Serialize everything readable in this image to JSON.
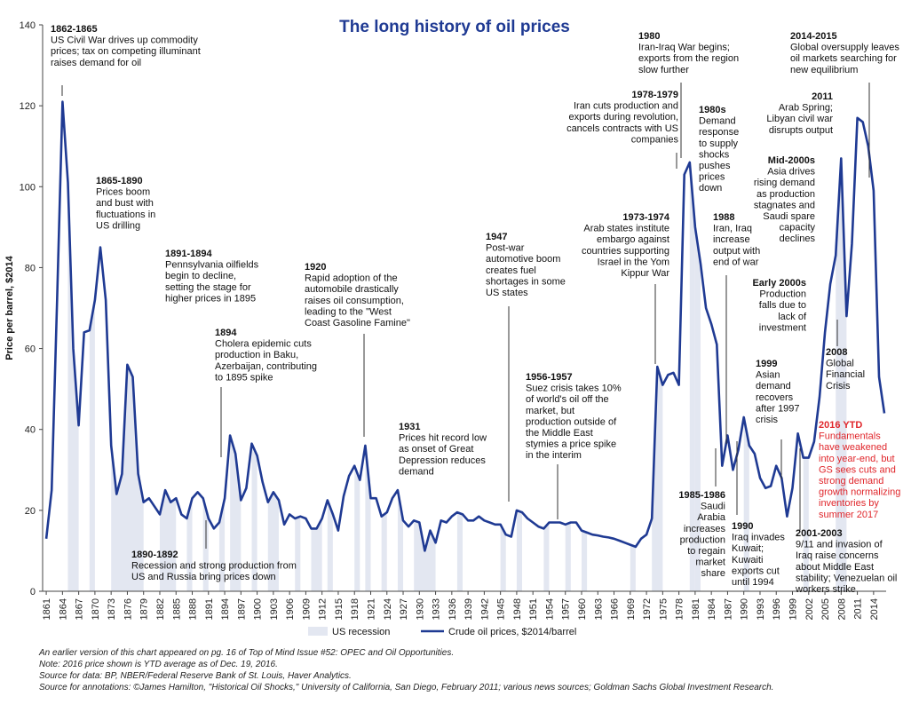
{
  "chart_data": {
    "type": "line",
    "title": "The long history of oil prices",
    "ylabel": "Price per barrel, $2014",
    "ylim": [
      0,
      140
    ],
    "yticks": [
      0,
      20,
      40,
      60,
      80,
      100,
      120,
      140
    ],
    "xlim": [
      1860,
      2017
    ],
    "xticks": [
      1861,
      1864,
      1867,
      1870,
      1873,
      1876,
      1879,
      1882,
      1885,
      1888,
      1891,
      1894,
      1897,
      1900,
      1903,
      1906,
      1909,
      1912,
      1915,
      1918,
      1921,
      1924,
      1927,
      1930,
      1933,
      1936,
      1939,
      1942,
      1945,
      1948,
      1951,
      1954,
      1957,
      1960,
      1963,
      1966,
      1969,
      1972,
      1975,
      1978,
      1981,
      1984,
      1987,
      1990,
      1993,
      1996,
      1999,
      2002,
      2005,
      2008,
      2011,
      2014
    ],
    "x": [
      1861,
      1862,
      1863,
      1864,
      1865,
      1866,
      1867,
      1868,
      1869,
      1870,
      1871,
      1872,
      1873,
      1874,
      1875,
      1876,
      1877,
      1878,
      1879,
      1880,
      1881,
      1882,
      1883,
      1884,
      1885,
      1886,
      1887,
      1888,
      1889,
      1890,
      1891,
      1892,
      1893,
      1894,
      1895,
      1896,
      1897,
      1898,
      1899,
      1900,
      1901,
      1902,
      1903,
      1904,
      1905,
      1906,
      1907,
      1908,
      1909,
      1910,
      1911,
      1912,
      1913,
      1914,
      1915,
      1916,
      1917,
      1918,
      1919,
      1920,
      1921,
      1922,
      1923,
      1924,
      1925,
      1926,
      1927,
      1928,
      1929,
      1930,
      1931,
      1932,
      1933,
      1934,
      1935,
      1936,
      1937,
      1938,
      1939,
      1940,
      1941,
      1942,
      1943,
      1944,
      1945,
      1946,
      1947,
      1948,
      1949,
      1950,
      1951,
      1952,
      1953,
      1954,
      1955,
      1956,
      1957,
      1958,
      1959,
      1960,
      1961,
      1962,
      1963,
      1964,
      1965,
      1966,
      1967,
      1968,
      1969,
      1970,
      1971,
      1972,
      1973,
      1974,
      1975,
      1976,
      1977,
      1978,
      1979,
      1980,
      1981,
      1982,
      1983,
      1984,
      1985,
      1986,
      1987,
      1988,
      1989,
      1990,
      1991,
      1992,
      1993,
      1994,
      1995,
      1996,
      1997,
      1998,
      1999,
      2000,
      2001,
      2002,
      2003,
      2004,
      2005,
      2006,
      2007,
      2008,
      2009,
      2010,
      2011,
      2012,
      2013,
      2014,
      2015,
      2016
    ],
    "series": [
      {
        "name": "Crude oil prices, $2014/barrel",
        "color": "#1f3a93",
        "values": [
          13,
          25,
          72,
          121,
          101,
          60,
          41,
          64,
          64.5,
          72,
          85,
          72,
          36,
          24,
          29,
          56,
          53,
          29,
          22,
          23,
          21,
          19,
          25,
          22,
          23,
          19,
          18,
          23,
          24.5,
          23,
          18,
          15.5,
          17,
          23,
          38.5,
          34,
          22.5,
          25.5,
          36.5,
          33.5,
          27,
          22,
          24.5,
          22.5,
          16.5,
          19,
          18,
          18.5,
          18,
          15.5,
          15.5,
          18,
          22.5,
          19,
          15,
          23.5,
          28.5,
          31,
          27.5,
          36,
          23,
          23,
          18.5,
          19.5,
          23,
          25,
          17.5,
          16,
          17.5,
          17,
          10,
          15,
          12,
          17.5,
          17,
          18.5,
          19.5,
          19,
          17.5,
          17.5,
          18.5,
          17.5,
          17,
          16.5,
          16.5,
          14,
          13.5,
          20,
          19.5,
          18,
          17,
          16,
          15.5,
          17,
          17,
          17,
          16.5,
          17,
          17,
          15,
          14.5,
          14,
          13.8,
          13.5,
          13.3,
          13,
          12.5,
          12,
          11.5,
          11,
          13,
          14,
          18,
          55.5,
          51,
          53.5,
          54,
          51,
          103,
          106,
          90,
          81,
          70,
          66,
          61,
          31,
          38.5,
          30,
          35,
          43,
          36,
          34,
          28,
          25.5,
          26,
          31,
          28,
          18.5,
          25.5,
          39,
          33,
          33,
          37,
          48,
          64,
          76,
          83,
          107,
          68,
          86,
          117,
          116,
          110,
          99,
          53,
          44
        ]
      }
    ],
    "recession_name": "US recession",
    "recession_color": "#e3e7f1",
    "recessions": [
      [
        1865,
        1867
      ],
      [
        1869,
        1870
      ],
      [
        1873,
        1879
      ],
      [
        1882,
        1885
      ],
      [
        1887,
        1888
      ],
      [
        1890,
        1891
      ],
      [
        1893,
        1894
      ],
      [
        1895,
        1897
      ],
      [
        1899,
        1900
      ],
      [
        1902,
        1904
      ],
      [
        1907,
        1908
      ],
      [
        1910,
        1912
      ],
      [
        1913,
        1914
      ],
      [
        1918,
        1919
      ],
      [
        1920,
        1921
      ],
      [
        1923,
        1924
      ],
      [
        1926,
        1927
      ],
      [
        1929,
        1933
      ],
      [
        1937,
        1938
      ],
      [
        1945,
        1946
      ],
      [
        1948,
        1949
      ],
      [
        1953,
        1954
      ],
      [
        1957,
        1958
      ],
      [
        1960,
        1961
      ],
      [
        1969,
        1970
      ],
      [
        1973,
        1975
      ],
      [
        1980,
        1981
      ],
      [
        1981,
        1982
      ],
      [
        1990,
        1991
      ],
      [
        2001,
        2002
      ],
      [
        2007,
        2009
      ]
    ],
    "annotations": [
      {
        "title": "1862-1865",
        "lines": [
          "US Civil War drives up commodity",
          "prices; tax on competing illuminant",
          "raises demand for oil"
        ]
      },
      {
        "title": "1865-1890",
        "lines": [
          "Prices boom",
          "and bust with",
          "fluctuations in",
          "US drilling"
        ]
      },
      {
        "title": "1891-1894",
        "lines": [
          "Pennsylvania oilfields",
          "begin to decline,",
          "setting the stage for",
          "higher prices in 1895"
        ]
      },
      {
        "title": "1894",
        "lines": [
          "Cholera epidemic cuts",
          "production in Baku,",
          "Azerbaijan, contributing",
          "to 1895 spike"
        ]
      },
      {
        "title": "1890-1892",
        "lines": [
          "Recession and strong production from",
          "US and Russia bring prices down"
        ]
      },
      {
        "title": "1920",
        "lines": [
          "Rapid adoption of the",
          "automobile drastically",
          "raises oil consumption,",
          "leading to the \"West",
          "Coast Gasoline Famine\""
        ]
      },
      {
        "title": "1931",
        "lines": [
          "Prices hit record low",
          "as onset of Great",
          "Depression reduces",
          "demand"
        ]
      },
      {
        "title": "1947",
        "lines": [
          "Post-war",
          "automotive boom",
          "creates fuel",
          "shortages in some",
          "US states"
        ]
      },
      {
        "title": "1956-1957",
        "lines": [
          "Suez crisis takes 10%",
          "of world's oil off the",
          "market, but",
          "production outside of",
          "the Middle East",
          "stymies a price spike",
          "in the interim"
        ]
      },
      {
        "title": "1973-1974",
        "lines": [
          "Arab states institute",
          "embargo against",
          "countries supporting",
          "Israel in the Yom",
          "Kippur War"
        ]
      },
      {
        "title": "1978-1979",
        "lines": [
          "Iran cuts production and",
          "exports during revolution,",
          "cancels contracts with US",
          "companies"
        ]
      },
      {
        "title": "1980",
        "lines": [
          "Iran-Iraq War begins;",
          "exports from the region",
          "slow further"
        ]
      },
      {
        "title": "1980s",
        "lines": [
          "Demand",
          "response",
          "to supply",
          "shocks",
          "pushes",
          "prices",
          "down"
        ]
      },
      {
        "title": "1988",
        "lines": [
          "Iran, Iraq",
          "increase",
          "output with",
          "end of war"
        ]
      },
      {
        "title": "1985-1986",
        "lines": [
          "Saudi",
          "Arabia",
          "increases",
          "production",
          "to regain",
          "market",
          "share"
        ]
      },
      {
        "title": "1990",
        "lines": [
          "Iraq invades",
          "Kuwait;",
          "Kuwaiti",
          "exports cut",
          "until 1994"
        ]
      },
      {
        "title": "Early 2000s",
        "lines": [
          "Production",
          "falls due to",
          "lack of",
          "investment"
        ]
      },
      {
        "title": "1999",
        "lines": [
          "Asian",
          "demand",
          "recovers",
          "after 1997",
          "crisis"
        ]
      },
      {
        "title": "2001-2003",
        "lines": [
          "9/11 and invasion of",
          "Iraq raise concerns",
          "about Middle East",
          "stability; Venezuelan oil",
          "workers strike"
        ]
      },
      {
        "title": "Mid-2000s",
        "lines": [
          "Asia drives",
          "rising demand",
          "as production",
          "stagnates and",
          "Saudi spare",
          "capacity",
          "declines"
        ]
      },
      {
        "title": "2011",
        "lines": [
          "Arab Spring;",
          "Libyan civil war",
          "disrupts output"
        ]
      },
      {
        "title": "2014-2015",
        "lines": [
          "Global oversupply leaves",
          "oil markets searching for",
          "new equilibrium"
        ]
      },
      {
        "title": "2008",
        "lines": [
          "Global",
          "Financial",
          "Crisis"
        ]
      },
      {
        "title": "2016 YTD",
        "lines": [
          "Fundamentals",
          "have weakened",
          "into year-end, but",
          "GS sees cuts and",
          "strong demand",
          "growth normalizing",
          "inventories by",
          "summer 2017"
        ]
      }
    ],
    "footnotes": [
      "An earlier version of this chart appeared on pg. 16 of Top of Mind Issue #52: OPEC and Oil Opportunities.",
      "Note: 2016 price shown is YTD average as of Dec. 19, 2016.",
      "Source for data: BP, NBER/Federal Reserve Bank of St. Louis, Haver Analytics.",
      "Source for annotations: ©James Hamilton, \"Historical Oil Shocks,\" University of California, San Diego, February 2011; various news sources; Goldman Sachs Global Investment Research."
    ]
  }
}
